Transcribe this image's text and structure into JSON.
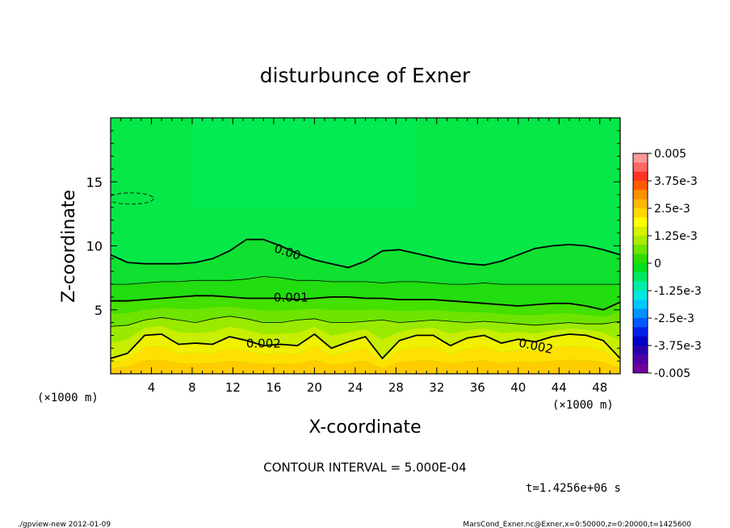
{
  "chart_data": {
    "type": "heatmap",
    "title": "disturbunce of Exner",
    "xlabel": "X-coordinate",
    "ylabel": "Z-coordinate",
    "x_unit": "(×1000 m)",
    "y_unit": "(×1000 m)",
    "xlim": [
      0,
      50
    ],
    "ylim": [
      0,
      20
    ],
    "x_ticks": [
      4,
      8,
      12,
      16,
      20,
      24,
      28,
      32,
      36,
      40,
      44,
      48
    ],
    "y_ticks": [
      5,
      10,
      15
    ],
    "contour_interval_text": "CONTOUR INTERVAL = 5.000E-04",
    "time_text": "t=1.4256e+06 s",
    "footer_left": "./gpview-new  2012-01-09",
    "footer_right": "MarsCond_Exner.nc@Exner,x=0:50000,z=0:20000,t=1425600",
    "colorbar": {
      "range": [
        -0.005,
        0.005
      ],
      "labels": [
        "0.005",
        "3.75e-3",
        "2.5e-3",
        "1.25e-3",
        "0",
        "-1.25e-3",
        "-2.5e-3",
        "-3.75e-3",
        "-0.005"
      ],
      "colors": [
        "#ff9999",
        "#ff6666",
        "#ff3322",
        "#ff5a00",
        "#ff9000",
        "#ffb800",
        "#ffd800",
        "#ffff00",
        "#d8f000",
        "#a8ec00",
        "#6ee400",
        "#2ede00",
        "#00e020",
        "#00e860",
        "#00eca8",
        "#00e8e0",
        "#00c8ff",
        "#0090ff",
        "#0058ff",
        "#0020e8",
        "#0000c8",
        "#2800b0",
        "#5000a8",
        "#7000a0"
      ]
    },
    "fill_colors": [
      "#ffcc00",
      "#ffe000",
      "#f0f000",
      "#c8ee00",
      "#9aea00",
      "#6ee400",
      "#44e000",
      "#22dd10",
      "#10e030",
      "#05e848"
    ],
    "contours": [
      {
        "label": "0.002",
        "level": 0.002,
        "z": [
          1.2,
          1.6,
          3.0,
          3.1,
          2.3,
          2.4,
          2.3,
          2.9,
          2.6,
          2.2,
          2.3,
          2.2,
          3.1,
          2.0,
          2.5,
          2.9,
          1.2,
          2.6,
          3.0,
          3.0,
          2.2,
          2.8,
          3.0,
          2.4,
          2.7,
          2.5,
          2.9,
          3.1,
          3.0,
          2.6,
          1.2
        ]
      },
      {
        "label": "",
        "level": 0.0015,
        "z": [
          3.7,
          3.8,
          4.2,
          4.4,
          4.2,
          4.0,
          4.3,
          4.5,
          4.3,
          4.0,
          4.0,
          4.2,
          4.3,
          4.0,
          4.0,
          4.1,
          4.2,
          4.0,
          4.1,
          4.2,
          4.1,
          4.0,
          4.1,
          4.0,
          3.9,
          3.8,
          3.9,
          4.0,
          3.9,
          3.9,
          4.1
        ]
      },
      {
        "label": "0.001",
        "level": 0.001,
        "z": [
          5.7,
          5.7,
          5.8,
          5.9,
          6.0,
          6.1,
          6.1,
          6.0,
          5.9,
          5.9,
          5.9,
          5.8,
          5.9,
          6.0,
          6.0,
          5.9,
          5.9,
          5.8,
          5.8,
          5.8,
          5.7,
          5.6,
          5.5,
          5.4,
          5.3,
          5.4,
          5.5,
          5.5,
          5.3,
          5.0,
          5.6
        ]
      },
      {
        "label": "",
        "level": 0.0005,
        "z": [
          7.0,
          7.0,
          7.1,
          7.2,
          7.2,
          7.3,
          7.3,
          7.3,
          7.4,
          7.6,
          7.5,
          7.3,
          7.3,
          7.2,
          7.2,
          7.2,
          7.1,
          7.2,
          7.2,
          7.1,
          7.0,
          7.0,
          7.1,
          7.0,
          7.0,
          7.0,
          7.0,
          7.0,
          7.0,
          7.0,
          7.0
        ]
      },
      {
        "label": "0.00",
        "level": 0.0,
        "z": [
          9.3,
          8.7,
          8.6,
          8.6,
          8.6,
          8.7,
          9.0,
          9.6,
          10.5,
          10.5,
          10.0,
          9.4,
          8.9,
          8.6,
          8.3,
          8.8,
          9.6,
          9.7,
          9.4,
          9.1,
          8.8,
          8.6,
          8.5,
          8.8,
          9.3,
          9.8,
          10.0,
          10.1,
          10.0,
          9.7,
          9.3
        ]
      }
    ],
    "negative_contour": {
      "level": -0.0005,
      "x_center": 2,
      "z_center": 13.7
    }
  }
}
